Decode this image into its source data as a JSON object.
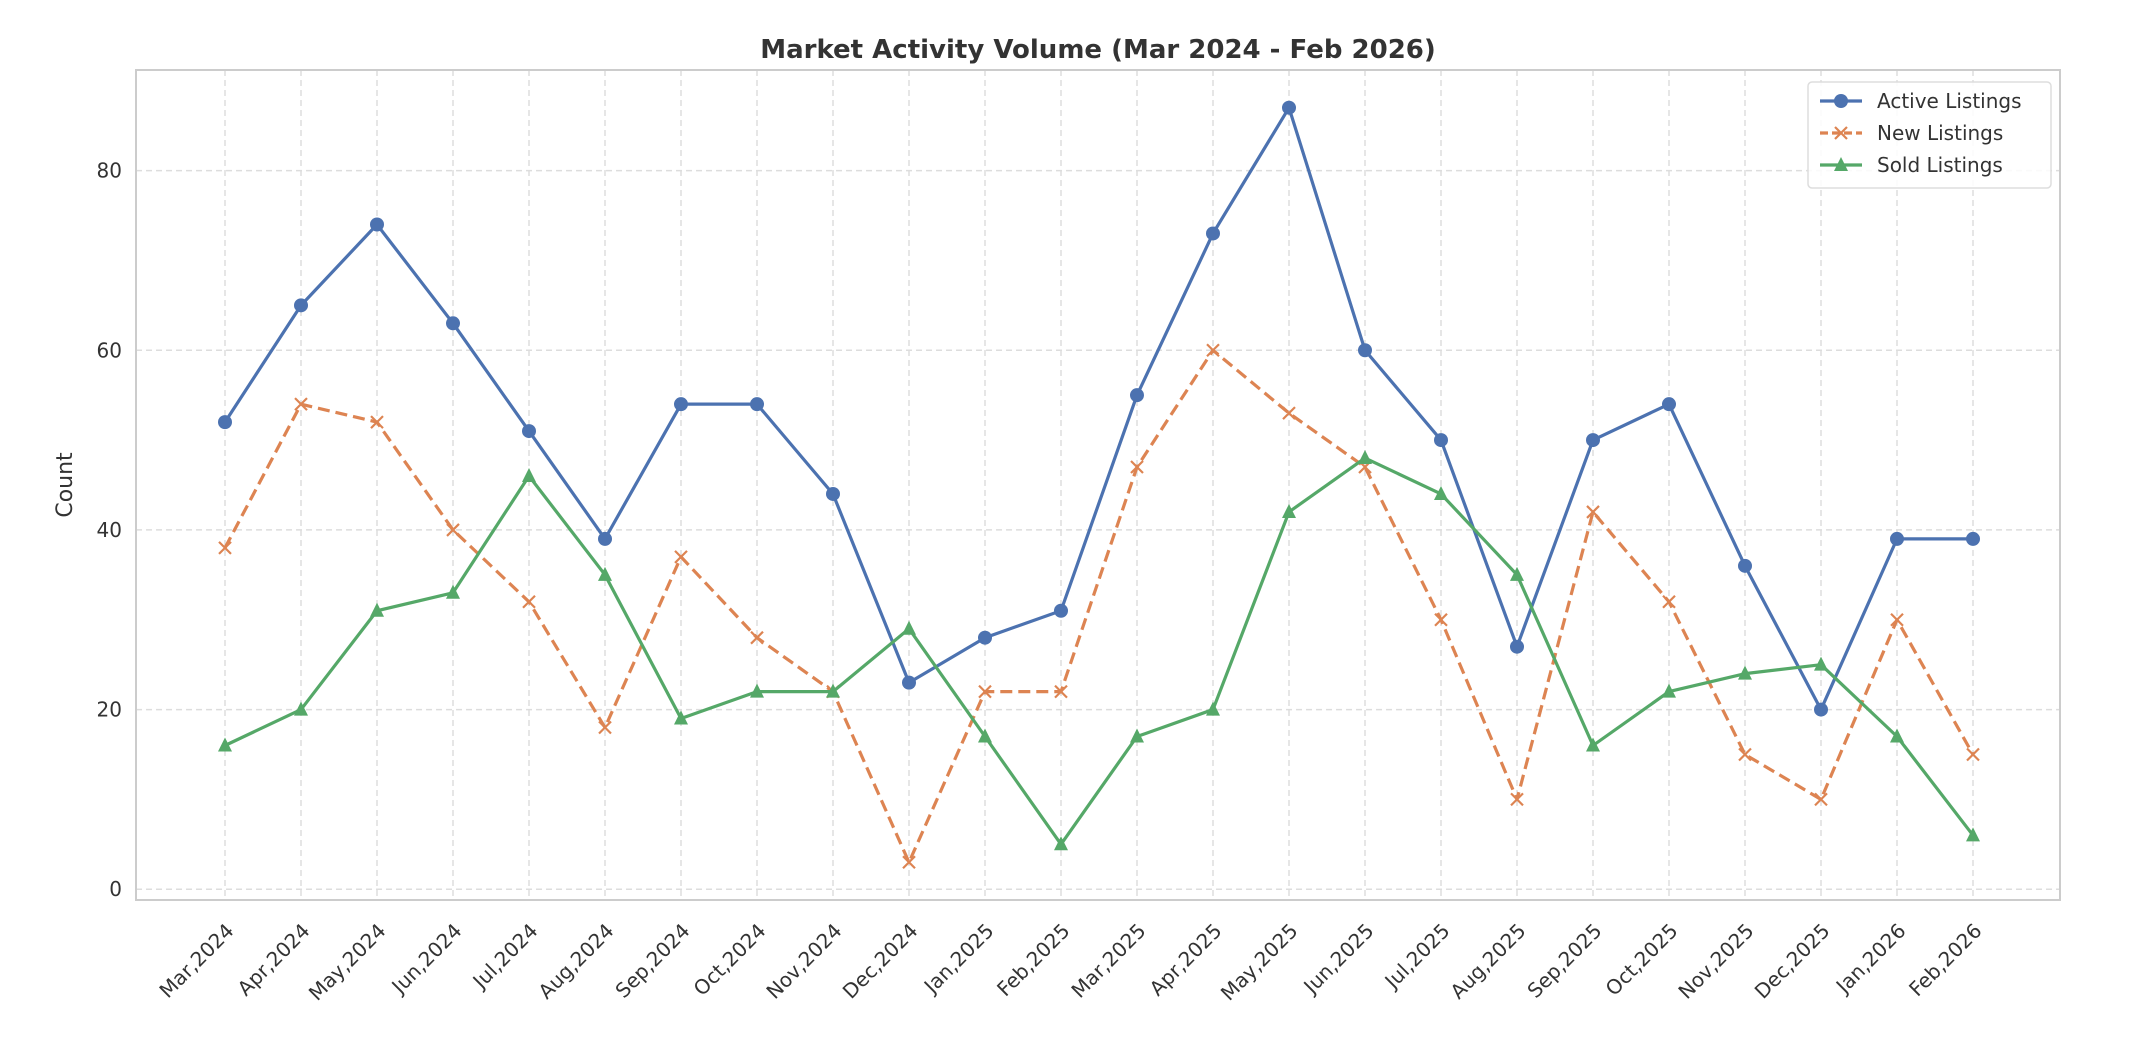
{
  "chart_data": {
    "type": "line",
    "title": "Market Activity Volume (Mar 2024 - Feb 2026)",
    "xlabel": "",
    "ylabel": "Count",
    "ylim": [
      -1.2,
      91.2
    ],
    "yticks": [
      0,
      20,
      40,
      60,
      80
    ],
    "grid": true,
    "legend_position": "top-right",
    "categories": [
      "Mar,2024",
      "Apr,2024",
      "May,2024",
      "Jun,2024",
      "Jul,2024",
      "Aug,2024",
      "Sep,2024",
      "Oct,2024",
      "Nov,2024",
      "Dec,2024",
      "Jan,2025",
      "Feb,2025",
      "Mar,2025",
      "Apr,2025",
      "May,2025",
      "Jun,2025",
      "Jul,2025",
      "Aug,2025",
      "Sep,2025",
      "Oct,2025",
      "Nov,2025",
      "Dec,2025",
      "Jan,2026",
      "Feb,2026"
    ],
    "series": [
      {
        "name": "Active Listings",
        "color": "#4c72b0",
        "marker": "circle",
        "dashed": false,
        "values": [
          52,
          65,
          74,
          63,
          51,
          39,
          54,
          54,
          44,
          23,
          28,
          31,
          55,
          73,
          87,
          60,
          50,
          27,
          50,
          54,
          36,
          20,
          39,
          39
        ]
      },
      {
        "name": "New Listings",
        "color": "#dd8452",
        "marker": "x",
        "dashed": true,
        "values": [
          38,
          54,
          52,
          40,
          32,
          18,
          37,
          28,
          22,
          3,
          22,
          22,
          47,
          60,
          53,
          47,
          30,
          10,
          42,
          32,
          15,
          10,
          30,
          15
        ]
      },
      {
        "name": "Sold Listings",
        "color": "#55a868",
        "marker": "triangle",
        "dashed": false,
        "values": [
          16,
          20,
          31,
          33,
          46,
          35,
          19,
          22,
          22,
          29,
          17,
          5,
          17,
          20,
          42,
          48,
          44,
          35,
          16,
          22,
          24,
          25,
          17,
          6
        ]
      }
    ]
  }
}
